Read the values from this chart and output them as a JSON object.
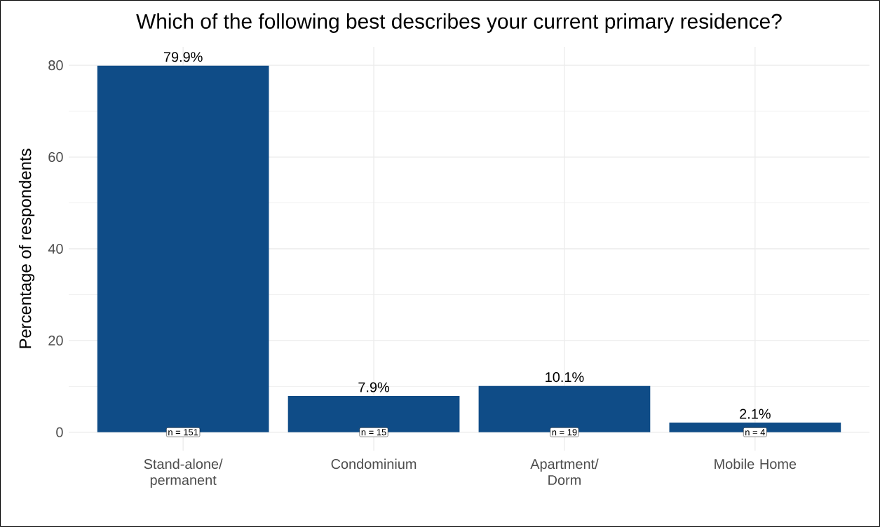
{
  "chart_data": {
    "type": "bar",
    "title": "Which of the following best describes your current primary residence?",
    "ylabel": "Percentage of respondents",
    "categories": [
      "Stand-alone/ permanent",
      "Condominium",
      "Apartment/ Dorm",
      "Mobile Home"
    ],
    "values": [
      79.9,
      7.9,
      10.1,
      2.1
    ],
    "value_labels": [
      "79.9%",
      "7.9%",
      "10.1%",
      "2.1%"
    ],
    "color": "#0f4c87",
    "ylim": [
      -4,
      84
    ],
    "yticks": [
      0,
      20,
      40,
      60,
      80
    ],
    "grid": true,
    "annotations": [
      {
        "text": "n = 151",
        "x": "Stand-alone/ permanent",
        "y": 0
      },
      {
        "text": "n = 15",
        "x": "Condominium",
        "y": 0
      },
      {
        "text": "n = 19",
        "x": "Apartment/ Dorm",
        "y": 0
      },
      {
        "text": "n = 4",
        "x": "Mobile Home",
        "y": 0
      }
    ]
  }
}
